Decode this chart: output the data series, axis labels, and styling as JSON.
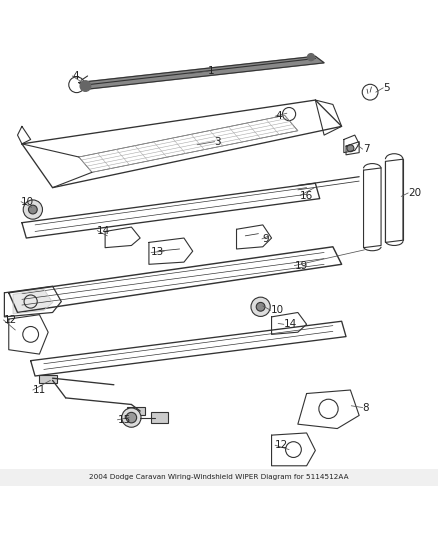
{
  "title": "2004 Dodge Caravan Wiring-Windshield WIPER Diagram for 5114512AA",
  "bg_color": "#ffffff",
  "fig_width": 4.38,
  "fig_height": 5.33,
  "dpi": 100,
  "line_color": "#333333",
  "label_fontsize": 7.5,
  "line_width": 0.8
}
